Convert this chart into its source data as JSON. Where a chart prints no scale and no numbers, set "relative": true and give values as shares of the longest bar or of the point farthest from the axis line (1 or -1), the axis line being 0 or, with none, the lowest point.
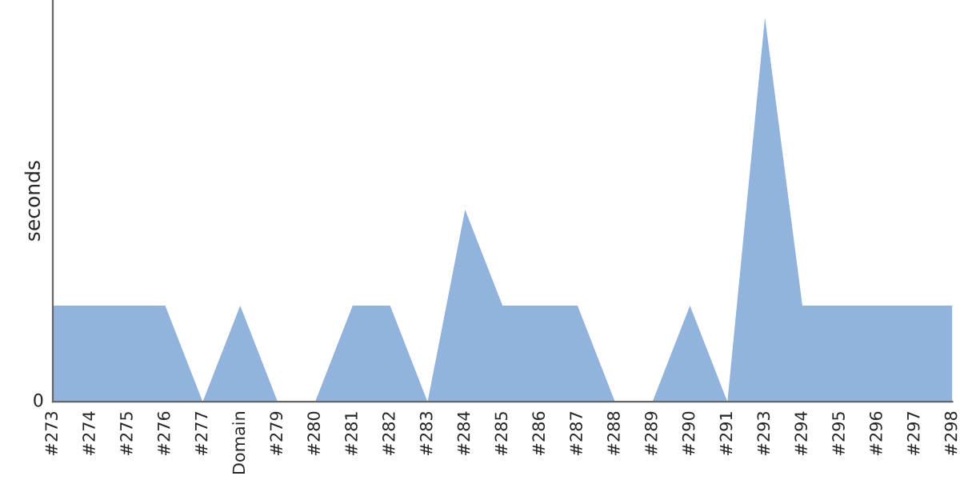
{
  "chart_data": {
    "type": "area",
    "relative": true,
    "ylabel": "seconds",
    "annotations": [
      "0"
    ],
    "color": "#92b3dc",
    "grid": false,
    "legend": false,
    "categories": [
      "#273",
      "#274",
      "#275",
      "#276",
      "#277",
      "Domain",
      "#279",
      "#280",
      "#281",
      "#282",
      "#283",
      "#284",
      "#285",
      "#286",
      "#287",
      "#288",
      "#289",
      "#290",
      "#291",
      "#293",
      "#294",
      "#295",
      "#296",
      "#297",
      "#298"
    ],
    "values": [
      0.25,
      0.25,
      0.25,
      0.25,
      0,
      0.25,
      0,
      0,
      0.25,
      0.25,
      0,
      0.5,
      0.25,
      0.25,
      0.25,
      0,
      0,
      0.25,
      0,
      1,
      0.25,
      0.25,
      0.25,
      0.25,
      0.25
    ]
  }
}
